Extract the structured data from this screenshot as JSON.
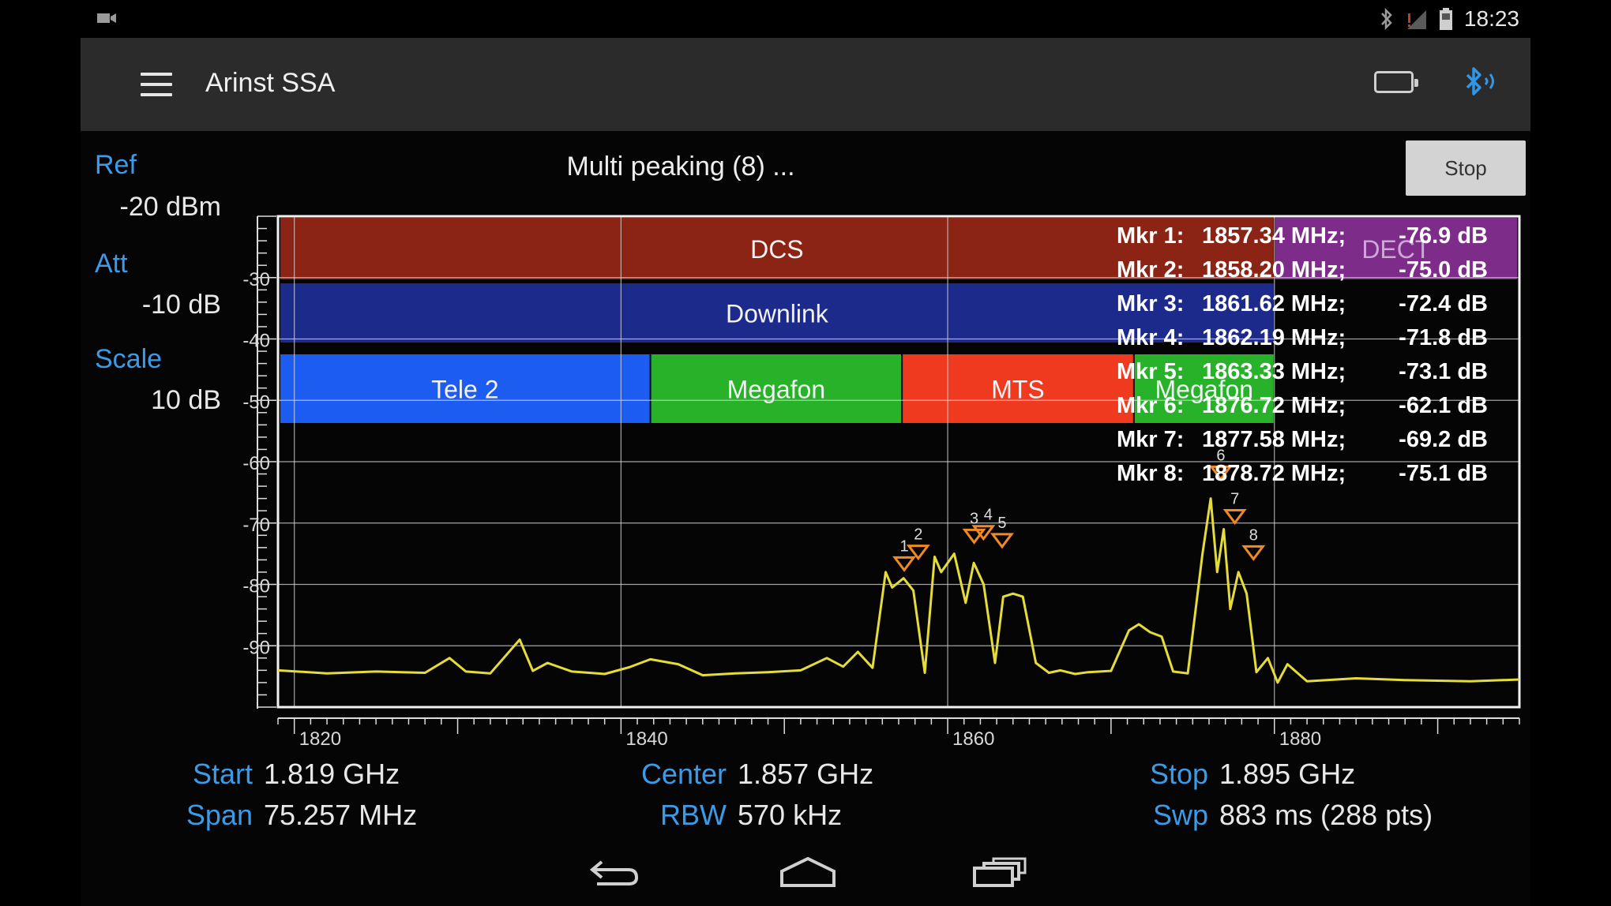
{
  "status_bar": {
    "time": "18:23",
    "icons": [
      "camera-icon",
      "bluetooth-icon",
      "signal-icon",
      "battery-icon"
    ]
  },
  "app": {
    "title": "Arinst SSA"
  },
  "settings": {
    "ref_label": "Ref",
    "ref_value": "-20 dBm",
    "att_label": "Att",
    "att_value": "-10 dB",
    "scale_label": "Scale",
    "scale_value": "10  dB"
  },
  "status_message": "Multi peaking (8) ...",
  "stop_button": "Stop",
  "chart_data": {
    "type": "line",
    "xlim": [
      1819,
      1895
    ],
    "ylim": [
      -100,
      -20
    ],
    "x_ticks": [
      1820,
      1840,
      1860,
      1880
    ],
    "y_ticks": [
      -30,
      -40,
      -50,
      -60,
      -70,
      -80,
      -90
    ],
    "grid": true,
    "colors": {
      "trace": "#e5dc3a",
      "marker": "#f08a24",
      "grid": "#d8d8d8"
    },
    "bands": [
      {
        "name": "DCS",
        "start": 1819,
        "end": 1880,
        "row": 0,
        "color": "#8b2414"
      },
      {
        "name": "DECT",
        "start": 1880,
        "end": 1895,
        "row": 0,
        "color": "#7e2c8a"
      },
      {
        "name": "Downlink",
        "start": 1819,
        "end": 1880,
        "row": 1,
        "color": "#1c2a8c"
      },
      {
        "name": "Tele 2",
        "start": 1819,
        "end": 1841.8,
        "row": 2,
        "color": "#1d5cf0"
      },
      {
        "name": "Megafon",
        "start": 1841.8,
        "end": 1857.2,
        "row": 2,
        "color": "#27b22a"
      },
      {
        "name": "MTS",
        "start": 1857.2,
        "end": 1871.4,
        "row": 2,
        "color": "#ef3a1f"
      },
      {
        "name": "Megafon",
        "start": 1871.4,
        "end": 1880,
        "row": 2,
        "color": "#27b22a"
      }
    ],
    "trace": {
      "x": [
        1819,
        1822,
        1825,
        1828,
        1829.5,
        1830.5,
        1832,
        1833.8,
        1834.6,
        1835.5,
        1837,
        1839,
        1840.5,
        1841.8,
        1843.5,
        1845,
        1847,
        1849,
        1851,
        1852.6,
        1853.6,
        1854.5,
        1855.4,
        1856.2,
        1856.6,
        1857.3,
        1857.9,
        1858.6,
        1859.2,
        1859.6,
        1860.4,
        1861.1,
        1861.6,
        1862.2,
        1862.9,
        1863.4,
        1864,
        1864.6,
        1865.4,
        1866.2,
        1866.9,
        1867.8,
        1868.6,
        1870,
        1871.1,
        1871.7,
        1872.4,
        1873.1,
        1873.8,
        1874.7,
        1875.6,
        1876.1,
        1876.5,
        1876.9,
        1877.3,
        1877.8,
        1878.3,
        1878.9,
        1879.6,
        1880.2,
        1880.8,
        1882,
        1885,
        1888,
        1892,
        1895
      ],
      "y": [
        -94,
        -94.5,
        -94.2,
        -94.4,
        -92,
        -94.2,
        -94.5,
        -89,
        -94.1,
        -92.8,
        -94.2,
        -94.6,
        -93.5,
        -92.2,
        -93,
        -94.8,
        -94.5,
        -94.3,
        -94,
        -92,
        -93.4,
        -91,
        -93.6,
        -78,
        -80.5,
        -79,
        -81,
        -94.4,
        -75.5,
        -78,
        -75,
        -83,
        -76.5,
        -80,
        -92.8,
        -82,
        -81.5,
        -82,
        -92.8,
        -94.4,
        -94,
        -94.6,
        -94.3,
        -94.1,
        -87.5,
        -86.5,
        -87.8,
        -88.5,
        -94.2,
        -94.5,
        -75,
        -66,
        -78,
        -71,
        -84,
        -78,
        -81.5,
        -94.3,
        -92,
        -96,
        -93,
        -95.8,
        -95.3,
        -95.6,
        -95.8,
        -95.5
      ]
    },
    "markers": [
      {
        "id": 1,
        "freq_mhz": 1857.34,
        "level_db": -76.9,
        "label": "Mkr 1:",
        "freq_text": "1857.34 MHz;",
        "level_text": "-76.9 dB"
      },
      {
        "id": 2,
        "freq_mhz": 1858.2,
        "level_db": -75.0,
        "label": "Mkr 2:",
        "freq_text": "1858.20 MHz;",
        "level_text": "-75.0 dB"
      },
      {
        "id": 3,
        "freq_mhz": 1861.62,
        "level_db": -72.4,
        "label": "Mkr 3:",
        "freq_text": "1861.62 MHz;",
        "level_text": "-72.4 dB"
      },
      {
        "id": 4,
        "freq_mhz": 1862.19,
        "level_db": -71.8,
        "label": "Mkr 4:",
        "freq_text": "1862.19 MHz;",
        "level_text": "-71.8 dB"
      },
      {
        "id": 5,
        "freq_mhz": 1863.33,
        "level_db": -73.1,
        "label": "Mkr 5:",
        "freq_text": "1863.33 MHz;",
        "level_text": "-73.1 dB"
      },
      {
        "id": 6,
        "freq_mhz": 1876.72,
        "level_db": -62.1,
        "label": "Mkr 6:",
        "freq_text": "1876.72 MHz;",
        "level_text": "-62.1 dB"
      },
      {
        "id": 7,
        "freq_mhz": 1877.58,
        "level_db": -69.2,
        "label": "Mkr 7:",
        "freq_text": "1877.58 MHz;",
        "level_text": "-69.2 dB"
      },
      {
        "id": 8,
        "freq_mhz": 1878.72,
        "level_db": -75.1,
        "label": "Mkr 8:",
        "freq_text": "1878.72 MHz;",
        "level_text": "-75.1 dB"
      }
    ]
  },
  "footer": {
    "start_label": "Start",
    "start_value": "1.819 GHz",
    "span_label": "Span",
    "span_value": "75.257 MHz",
    "center_label": "Center",
    "center_value": "1.857 GHz",
    "rbw_label": "RBW",
    "rbw_value": "570 kHz",
    "stop_label": "Stop",
    "stop_value": "1.895 GHz",
    "swp_label": "Swp",
    "swp_value": "883 ms (288 pts)"
  },
  "nav": {
    "icons": [
      "back-icon",
      "home-icon",
      "recent-apps-icon"
    ]
  }
}
